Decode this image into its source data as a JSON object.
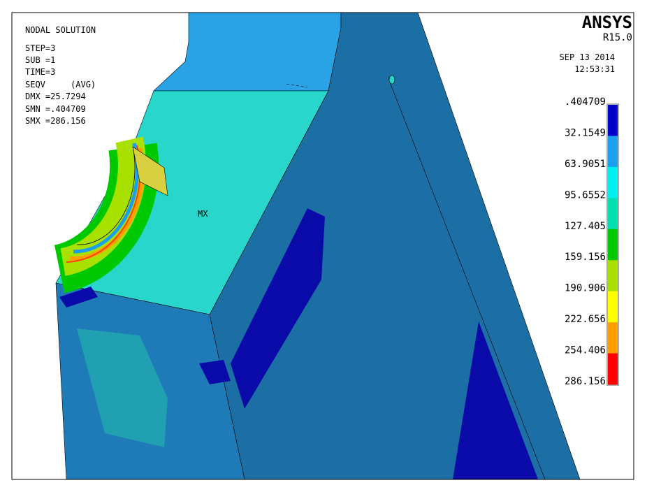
{
  "brand": "ANSYS",
  "version": "R15.0",
  "date": "SEP 13 2014",
  "time": "12:53:31",
  "info": [
    "NODAL SOLUTION",
    "STEP=3",
    "SUB =1",
    "TIME=3",
    "SEQV     (AVG)",
    "DMX =25.7294",
    "SMN =.404709",
    "SMX =286.156"
  ],
  "marker": "MX",
  "legend": {
    "labels": [
      ".404709",
      "32.1549",
      "63.9051",
      "95.6552",
      "127.405",
      "159.156",
      "190.906",
      "222.656",
      "254.406",
      "286.156"
    ],
    "colors": [
      "#0000c8",
      "#1aa0ee",
      "#00f0f0",
      "#00e0b0",
      "#00c800",
      "#a8e000",
      "#ffff00",
      "#ffa000",
      "#ff0000"
    ]
  }
}
